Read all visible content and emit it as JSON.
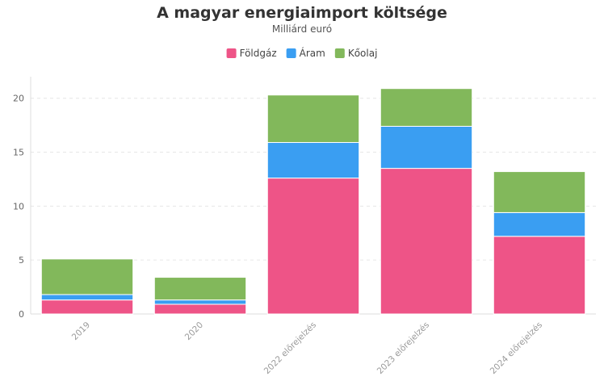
{
  "chart_data": {
    "type": "bar",
    "stacked": true,
    "title": "A magyar energiaimport költsége",
    "subtitle": "Milliárd euró",
    "xlabel": "",
    "ylabel": "",
    "categories": [
      "2019",
      "2020",
      "2022 előrejelzés",
      "2023 előrejelzés",
      "2024 előrejelzés"
    ],
    "series": [
      {
        "name": "Földgáz",
        "color": "#ee5487",
        "values": [
          1.3,
          0.9,
          12.6,
          13.5,
          7.2
        ]
      },
      {
        "name": "Áram",
        "color": "#3a9ef2",
        "values": [
          0.5,
          0.4,
          3.3,
          3.9,
          2.2
        ]
      },
      {
        "name": "Kőolaj",
        "color": "#82b85b",
        "values": [
          3.3,
          2.1,
          4.4,
          3.5,
          3.8
        ]
      }
    ],
    "ylim": [
      0,
      22
    ],
    "yticks": [
      0,
      5,
      10,
      15,
      20
    ],
    "grid": true,
    "legend_position": "top-center"
  }
}
